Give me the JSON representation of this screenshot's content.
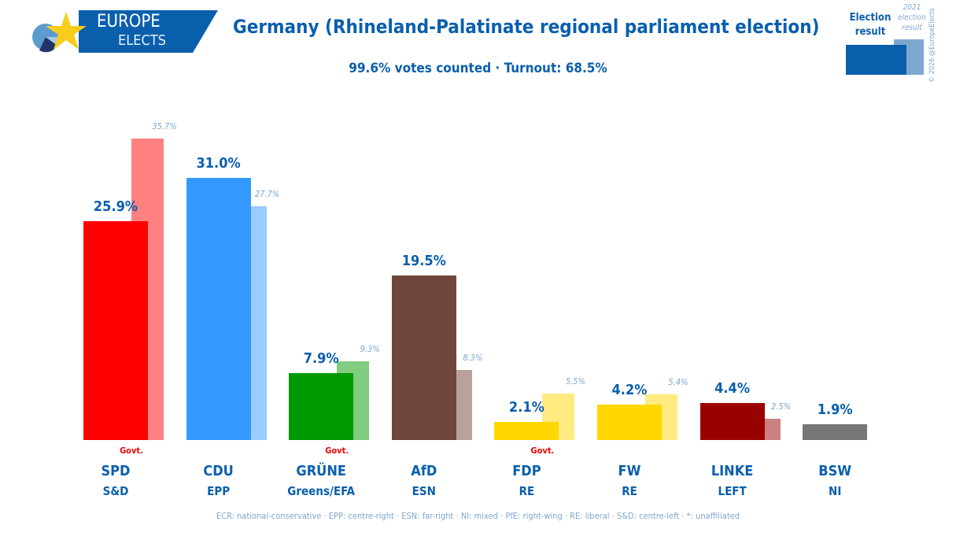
{
  "logo": {
    "line1": "EUROPE",
    "line2": "ELECTS"
  },
  "title": "Germany (Rhineland-Palatinate regional parliament election)",
  "subtitle": "99.6% votes counted · Turnout: 68.5%",
  "legend": {
    "current": "Election result",
    "previous": "2021 election result",
    "copyright": "© 2026 @EuropeElects",
    "current_color": "#0a5fad",
    "previous_color": "#7ea7cf"
  },
  "footer": "ECR: national-conservative · EPP: centre-right · ESN: far-right · NI: mixed · PfE: right-wing · RE: liberal · S&D: centre-left · *: unaffiliated",
  "chart_data": {
    "type": "bar",
    "categories": [
      "SPD",
      "CDU",
      "GRÜNE",
      "AfD",
      "FDP",
      "FW",
      "LINKE",
      "BSW"
    ],
    "groups": [
      "S&D",
      "EPP",
      "Greens/EFA",
      "ESN",
      "RE",
      "RE",
      "LEFT",
      "NI"
    ],
    "government": [
      true,
      false,
      true,
      false,
      true,
      false,
      false,
      false
    ],
    "government_label": "Govt.",
    "series": [
      {
        "name": "Election result",
        "values": [
          25.9,
          31.0,
          7.9,
          19.5,
          2.1,
          4.2,
          4.4,
          1.9
        ],
        "labels": [
          "25.9%",
          "31.0%",
          "7.9%",
          "19.5%",
          "2.1%",
          "4.2%",
          "4.4%",
          "1.9%"
        ],
        "colors": [
          "#ff0000",
          "#3399ff",
          "#009900",
          "#70463a",
          "#ffd700",
          "#ffd700",
          "#990000",
          "#777777"
        ]
      },
      {
        "name": "2021 election result",
        "values": [
          35.7,
          27.7,
          9.3,
          8.3,
          5.5,
          5.4,
          2.5,
          null
        ],
        "labels": [
          "35.7%",
          "27.7%",
          "9.3%",
          "8.3%",
          "5.5%",
          "5.4%",
          "2.5%",
          ""
        ],
        "colors": [
          "#ff8080",
          "#99ccff",
          "#80cc80",
          "#b8a29c",
          "#ffeb80",
          "#ffeb80",
          "#cc8080",
          "#bbbbbb"
        ]
      }
    ],
    "ylim": [
      0,
      37
    ]
  }
}
